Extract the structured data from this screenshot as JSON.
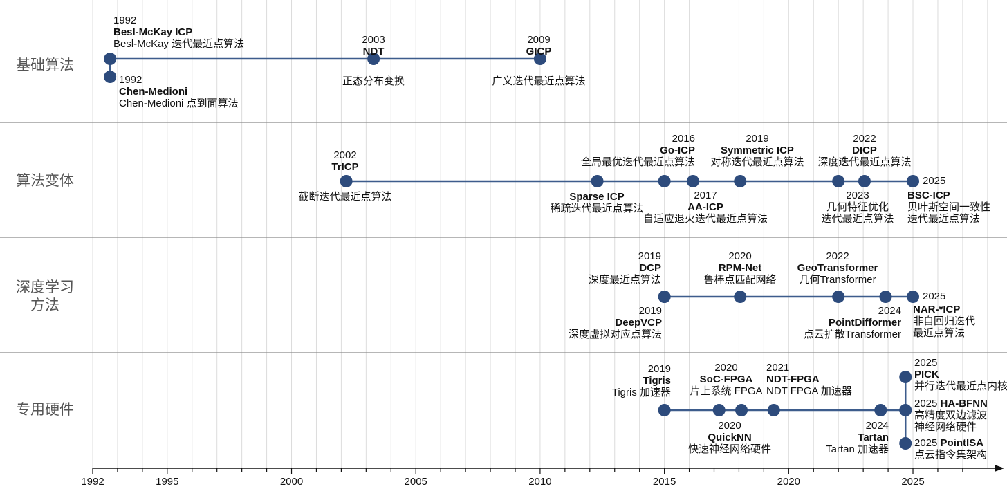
{
  "colors": {
    "node": "#2d4b7c",
    "line": "#3d5c8c",
    "grid": "#dcdcdc",
    "lane_divider": "#8a8a8a",
    "axis": "#111111",
    "lane_label": "#555555"
  },
  "axis": {
    "range": [
      1992,
      2028
    ],
    "tick_labels": [
      "1992",
      "1995",
      "2000",
      "2005",
      "2010",
      "2015",
      "2020",
      "2025"
    ],
    "minor_ticks": "yearly",
    "grid": "yearly vertical"
  },
  "lanes": [
    {
      "label": "基础算法"
    },
    {
      "label": "算法变体"
    },
    {
      "label": "深度学习\n方法"
    },
    {
      "label": "专用硬件"
    }
  ],
  "events": [
    {
      "lane": 0,
      "t": 1992.7,
      "year": "1992",
      "name": "Besl-McKay ICP",
      "desc": [
        "Besl-McKay 迭代最近点算法"
      ]
    },
    {
      "lane": 0,
      "t": 1992.7,
      "year": "1992",
      "name": "Chen-Medioni",
      "desc": [
        "Chen-Medioni 点到面算法"
      ]
    },
    {
      "lane": 0,
      "t": 2003.3,
      "year": "2003",
      "name": "NDT",
      "desc": [
        "正态分布变换"
      ]
    },
    {
      "lane": 0,
      "t": 2010.0,
      "year": "2009",
      "name": "GICP",
      "desc": [
        "广义迭代最近点算法"
      ]
    },
    {
      "lane": 1,
      "t": 2002.2,
      "year": "2002",
      "name": "TrICP",
      "desc": [
        "截断迭代最近点算法"
      ]
    },
    {
      "lane": 1,
      "t": 2012.3,
      "year": "",
      "name": "Sparse ICP",
      "desc": [
        "稀疏迭代最近点算法"
      ]
    },
    {
      "lane": 1,
      "t": 2015.0,
      "year": "2016",
      "name": "Go-ICP",
      "desc": [
        "全局最优迭代最近点算法"
      ]
    },
    {
      "lane": 1,
      "t": 2016.15,
      "year": "2017",
      "name": "AA-ICP",
      "desc": [
        "自适应退火迭代最近点算法"
      ]
    },
    {
      "lane": 1,
      "t": 2018.05,
      "year": "2019",
      "name": "Symmetric ICP",
      "desc": [
        "对称迭代最近点算法"
      ]
    },
    {
      "lane": 1,
      "t": 2022.0,
      "year": "2022",
      "name": "DICP",
      "desc": [
        "深度迭代最近点算法"
      ]
    },
    {
      "lane": 1,
      "t": 2023.05,
      "year": "2023",
      "name": "",
      "desc": [
        "几何特征优化",
        "迭代最近点算法"
      ]
    },
    {
      "lane": 1,
      "t": 2025.0,
      "year": "2025",
      "name": "BSC-ICP",
      "desc": [
        "贝叶斯空间一致性",
        "迭代最近点算法"
      ]
    },
    {
      "lane": 2,
      "t": 2015.0,
      "year": "2019",
      "name": "DCP",
      "desc": [
        "深度最近点算法"
      ]
    },
    {
      "lane": 2,
      "t": 2015.0,
      "year": "2019",
      "name": "DeepVCP",
      "desc": [
        "深度虚拟对应点算法"
      ]
    },
    {
      "lane": 2,
      "t": 2018.05,
      "year": "2020",
      "name": "RPM-Net",
      "desc": [
        "鲁棒点匹配网络"
      ]
    },
    {
      "lane": 2,
      "t": 2022.0,
      "year": "2022",
      "name": "GeoTransformer",
      "desc": [
        "几何Transformer"
      ]
    },
    {
      "lane": 2,
      "t": 2023.9,
      "year": "2024",
      "name": "PointDifformer",
      "desc": [
        "点云扩散Transformer"
      ]
    },
    {
      "lane": 2,
      "t": 2025.0,
      "year": "2025",
      "name": "NAR-*ICP",
      "desc": [
        "非自回归迭代",
        "最近点算法"
      ]
    },
    {
      "lane": 3,
      "t": 2015.0,
      "year": "2019",
      "name": "Tigris",
      "desc": [
        "Tigris 加速器"
      ]
    },
    {
      "lane": 3,
      "t": 2017.2,
      "year": "2020",
      "name": "SoC-FPGA",
      "desc": [
        "片上系统 FPGA"
      ]
    },
    {
      "lane": 3,
      "t": 2018.1,
      "year": "2020",
      "name": "QuickNN",
      "desc": [
        "快速神经网络硬件"
      ]
    },
    {
      "lane": 3,
      "t": 2019.4,
      "year": "2021",
      "name": "NDT-FPGA",
      "desc": [
        "NDT FPGA 加速器"
      ]
    },
    {
      "lane": 3,
      "t": 2023.7,
      "year": "2024",
      "name": "Tartan",
      "desc": [
        "Tartan 加速器"
      ]
    },
    {
      "lane": 3,
      "t": 2024.7,
      "year": "2025",
      "name": "PICK",
      "desc": [
        "并行迭代最近点内核"
      ]
    },
    {
      "lane": 3,
      "t": 2024.7,
      "year": "2025",
      "name": "HA-BFNN",
      "desc": [
        "高精度双边滤波",
        "神经网络硬件"
      ]
    },
    {
      "lane": 3,
      "t": 2024.7,
      "year": "2025",
      "name": "PointISA",
      "desc": [
        "点云指令集架构"
      ]
    }
  ]
}
